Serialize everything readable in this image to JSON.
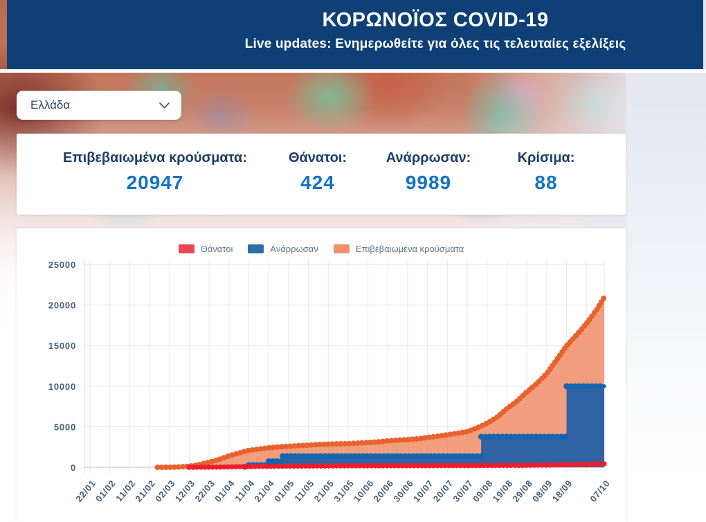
{
  "header": {
    "title": "ΚΟΡΩΝΟΪΟΣ COVID-19",
    "subtitle": "Live updates: Ενημερωθείτε για όλες τις τελευταίες εξελίξεις"
  },
  "country_select": {
    "value": "Ελλάδα"
  },
  "stats": [
    {
      "label": "Επιβεβαιωμένα κρούσματα:",
      "value": "20947"
    },
    {
      "label": "Θάνατοι:",
      "value": "424"
    },
    {
      "label": "Ανάρρωσαν:",
      "value": "9989"
    },
    {
      "label": "Κρίσιμα:",
      "value": "88"
    }
  ],
  "colors": {
    "header_bg": "#0e4076",
    "stat_label": "#1d3e66",
    "stat_value": "#1173c7",
    "axis_text": "#42607a",
    "legend_text": "#60758a"
  },
  "chart_data": {
    "type": "area",
    "title": "",
    "xlabel": "",
    "ylabel": "",
    "ylim": [
      0,
      25000
    ],
    "yticks": [
      0,
      5000,
      10000,
      15000,
      20000,
      25000
    ],
    "grid": true,
    "legend_position": "top-center",
    "x_unit": "days since 22/01",
    "xticks": [
      {
        "label": "22/01",
        "day": 0
      },
      {
        "label": "01/02",
        "day": 10
      },
      {
        "label": "11/02",
        "day": 20
      },
      {
        "label": "21/02",
        "day": 30
      },
      {
        "label": "02/03",
        "day": 40
      },
      {
        "label": "12/03",
        "day": 50
      },
      {
        "label": "22/03",
        "day": 60
      },
      {
        "label": "01/04",
        "day": 70
      },
      {
        "label": "11/04",
        "day": 80
      },
      {
        "label": "21/04",
        "day": 90
      },
      {
        "label": "01/05",
        "day": 100
      },
      {
        "label": "11/05",
        "day": 110
      },
      {
        "label": "21/05",
        "day": 120
      },
      {
        "label": "31/05",
        "day": 130
      },
      {
        "label": "10/06",
        "day": 140
      },
      {
        "label": "20/06",
        "day": 150
      },
      {
        "label": "30/06",
        "day": 160
      },
      {
        "label": "10/07",
        "day": 170
      },
      {
        "label": "20/07",
        "day": 180
      },
      {
        "label": "30/07",
        "day": 190
      },
      {
        "label": "09/08",
        "day": 200
      },
      {
        "label": "19/08",
        "day": 210
      },
      {
        "label": "29/08",
        "day": 220
      },
      {
        "label": "08/09",
        "day": 230
      },
      {
        "label": "18/09",
        "day": 240
      },
      {
        "label": "07/10",
        "day": 259
      }
    ],
    "extra_gridline_days": [
      250
    ],
    "legend": [
      {
        "name": "Θάνατοι",
        "color": "#e94750"
      },
      {
        "name": "Ανάρρωσαν",
        "color": "#2e6da7"
      },
      {
        "name": "Επιβεβαιωμένα κρούσματα",
        "color": "#f0916b"
      }
    ],
    "series": [
      {
        "name": "Επιβεβαιωμένα κρούσματα",
        "kind": "area-line",
        "interpolation": "linear",
        "line_color": "#e8622d",
        "fill_color": "rgba(240,145,108,0.88)",
        "points": [
          [
            34,
            3
          ],
          [
            40,
            7
          ],
          [
            45,
            46
          ],
          [
            50,
            117
          ],
          [
            55,
            331
          ],
          [
            60,
            624
          ],
          [
            65,
            966
          ],
          [
            70,
            1415
          ],
          [
            75,
            1755
          ],
          [
            80,
            2081
          ],
          [
            85,
            2245
          ],
          [
            90,
            2401
          ],
          [
            95,
            2506
          ],
          [
            100,
            2591
          ],
          [
            105,
            2663
          ],
          [
            110,
            2726
          ],
          [
            115,
            2810
          ],
          [
            120,
            2853
          ],
          [
            125,
            2892
          ],
          [
            130,
            2915
          ],
          [
            135,
            2980
          ],
          [
            140,
            3058
          ],
          [
            145,
            3134
          ],
          [
            150,
            3256
          ],
          [
            155,
            3343
          ],
          [
            160,
            3409
          ],
          [
            165,
            3511
          ],
          [
            170,
            3672
          ],
          [
            175,
            3826
          ],
          [
            180,
            4007
          ],
          [
            185,
            4193
          ],
          [
            190,
            4401
          ],
          [
            195,
            4855
          ],
          [
            200,
            5421
          ],
          [
            205,
            6177
          ],
          [
            210,
            7222
          ],
          [
            215,
            8138
          ],
          [
            220,
            9280
          ],
          [
            225,
            10317
          ],
          [
            230,
            11524
          ],
          [
            235,
            13240
          ],
          [
            240,
            14978
          ],
          [
            245,
            16286
          ],
          [
            250,
            17707
          ],
          [
            255,
            19346
          ],
          [
            259,
            20947
          ]
        ]
      },
      {
        "name": "Ανάρρωσαν",
        "kind": "area-step",
        "interpolation": "step-after",
        "line_color": "#1565af",
        "fill_color": "#2f63a4",
        "points": [
          [
            78,
            52
          ],
          [
            80,
            269
          ],
          [
            90,
            741
          ],
          [
            97,
            1374
          ],
          [
            197,
            3772
          ],
          [
            240,
            9989
          ],
          [
            259,
            9989
          ]
        ]
      },
      {
        "name": "Θάνατοι",
        "kind": "line",
        "interpolation": "linear",
        "line_color": "#ec1e2d",
        "points": [
          [
            50,
            1
          ],
          [
            55,
            5
          ],
          [
            60,
            15
          ],
          [
            65,
            28
          ],
          [
            70,
            50
          ],
          [
            75,
            79
          ],
          [
            80,
            93
          ],
          [
            85,
            110
          ],
          [
            90,
            121
          ],
          [
            95,
            130
          ],
          [
            100,
            140
          ],
          [
            105,
            146
          ],
          [
            110,
            151
          ],
          [
            115,
            160
          ],
          [
            120,
            166
          ],
          [
            125,
            172
          ],
          [
            130,
            175
          ],
          [
            135,
            179
          ],
          [
            140,
            183
          ],
          [
            145,
            187
          ],
          [
            150,
            190
          ],
          [
            160,
            192
          ],
          [
            170,
            193
          ],
          [
            180,
            201
          ],
          [
            190,
            206
          ],
          [
            200,
            210
          ],
          [
            210,
            228
          ],
          [
            220,
            243
          ],
          [
            225,
            254
          ],
          [
            230,
            271
          ],
          [
            235,
            293
          ],
          [
            240,
            315
          ],
          [
            245,
            338
          ],
          [
            250,
            366
          ],
          [
            255,
            393
          ],
          [
            259,
            424
          ]
        ]
      }
    ]
  }
}
